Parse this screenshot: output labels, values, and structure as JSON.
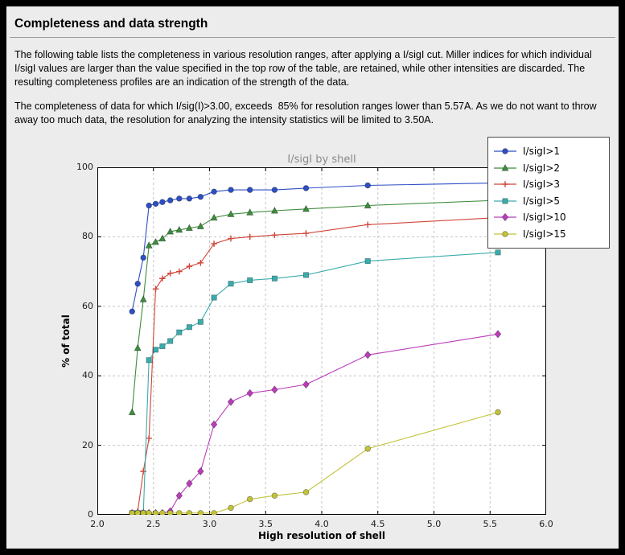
{
  "page": {
    "title": "Completeness and data strength",
    "paragraph1": "The following table lists the completeness in various resolution ranges, after applying a I/sigI cut. Miller indices for which individual I/sigI values are larger than the value specified in the top row of the table, are retained, while other intensities are discarded. The resulting completeness profiles are an indication of the strength of the data.",
    "paragraph2": "The completeness of data for which I/sig(I)>3.00, exceeds  85% for resolution ranges lower than 5.57A. As we do not want to throw away too much data, the resolution for analyzing the intensity statistics will be limited to 3.50A."
  },
  "colors": {
    "frame_bg": "#000000",
    "panel_bg": "#ececec",
    "plot_bg": "#ffffff",
    "grid": "#c6c6c6",
    "chart_title_gray": "#8a8a8a"
  },
  "chart_data": {
    "type": "line",
    "title": "I/sigI by shell",
    "xlabel": "High resolution of shell",
    "ylabel": "% of total",
    "xlim": [
      2.0,
      6.0
    ],
    "ylim": [
      0,
      100
    ],
    "x_ticks": [
      2.0,
      2.5,
      3.0,
      3.5,
      4.0,
      4.5,
      5.0,
      5.5,
      6.0
    ],
    "y_ticks": [
      0,
      20,
      40,
      60,
      80,
      100
    ],
    "grid": "dashed",
    "legend_position": "upper right",
    "x": [
      2.31,
      2.36,
      2.41,
      2.46,
      2.52,
      2.58,
      2.65,
      2.73,
      2.82,
      2.92,
      3.04,
      3.19,
      3.36,
      3.58,
      3.86,
      4.41,
      5.57
    ],
    "series": [
      {
        "name": "I/sigI>1",
        "color": "#2c4fc4",
        "marker": "circle",
        "values": [
          58.5,
          66.5,
          74.0,
          89.0,
          89.5,
          90.0,
          90.5,
          91.0,
          91.0,
          91.5,
          93.0,
          93.5,
          93.5,
          93.5,
          94.0,
          94.8,
          95.5
        ]
      },
      {
        "name": "I/sigI>2",
        "color": "#3d8c3d",
        "marker": "triangle",
        "values": [
          29.5,
          48.0,
          62.0,
          77.5,
          78.5,
          79.5,
          81.5,
          82.0,
          82.5,
          83.0,
          85.5,
          86.5,
          87.0,
          87.5,
          88.0,
          89.0,
          90.5
        ]
      },
      {
        "name": "I/sigI>3",
        "color": "#d0453a",
        "marker": "plus",
        "values": [
          0.5,
          1.0,
          12.5,
          22.0,
          65.0,
          68.0,
          69.5,
          70.0,
          71.5,
          72.5,
          78.0,
          79.5,
          80.0,
          80.5,
          81.0,
          83.5,
          85.5
        ]
      },
      {
        "name": "I/sigI>5",
        "color": "#3aacac",
        "marker": "square",
        "values": [
          0.5,
          0.5,
          0.5,
          44.5,
          47.5,
          48.5,
          50.0,
          52.5,
          54.0,
          55.5,
          62.5,
          66.5,
          67.5,
          68.0,
          69.0,
          73.0,
          75.5
        ]
      },
      {
        "name": "I/sigI>10",
        "color": "#bb3cbb",
        "marker": "diamond",
        "values": [
          0.5,
          0.5,
          0.5,
          0.5,
          0.5,
          0.5,
          1.0,
          5.5,
          9.0,
          12.5,
          26.0,
          32.5,
          35.0,
          36.0,
          37.5,
          46.0,
          52.0
        ]
      },
      {
        "name": "I/sigI>15",
        "color": "#c2c23a",
        "marker": "circle",
        "values": [
          0.5,
          0.5,
          0.5,
          0.5,
          0.5,
          0.5,
          0.5,
          0.5,
          0.5,
          0.5,
          0.5,
          2.0,
          4.5,
          5.5,
          6.5,
          19.0,
          29.5
        ]
      }
    ]
  }
}
